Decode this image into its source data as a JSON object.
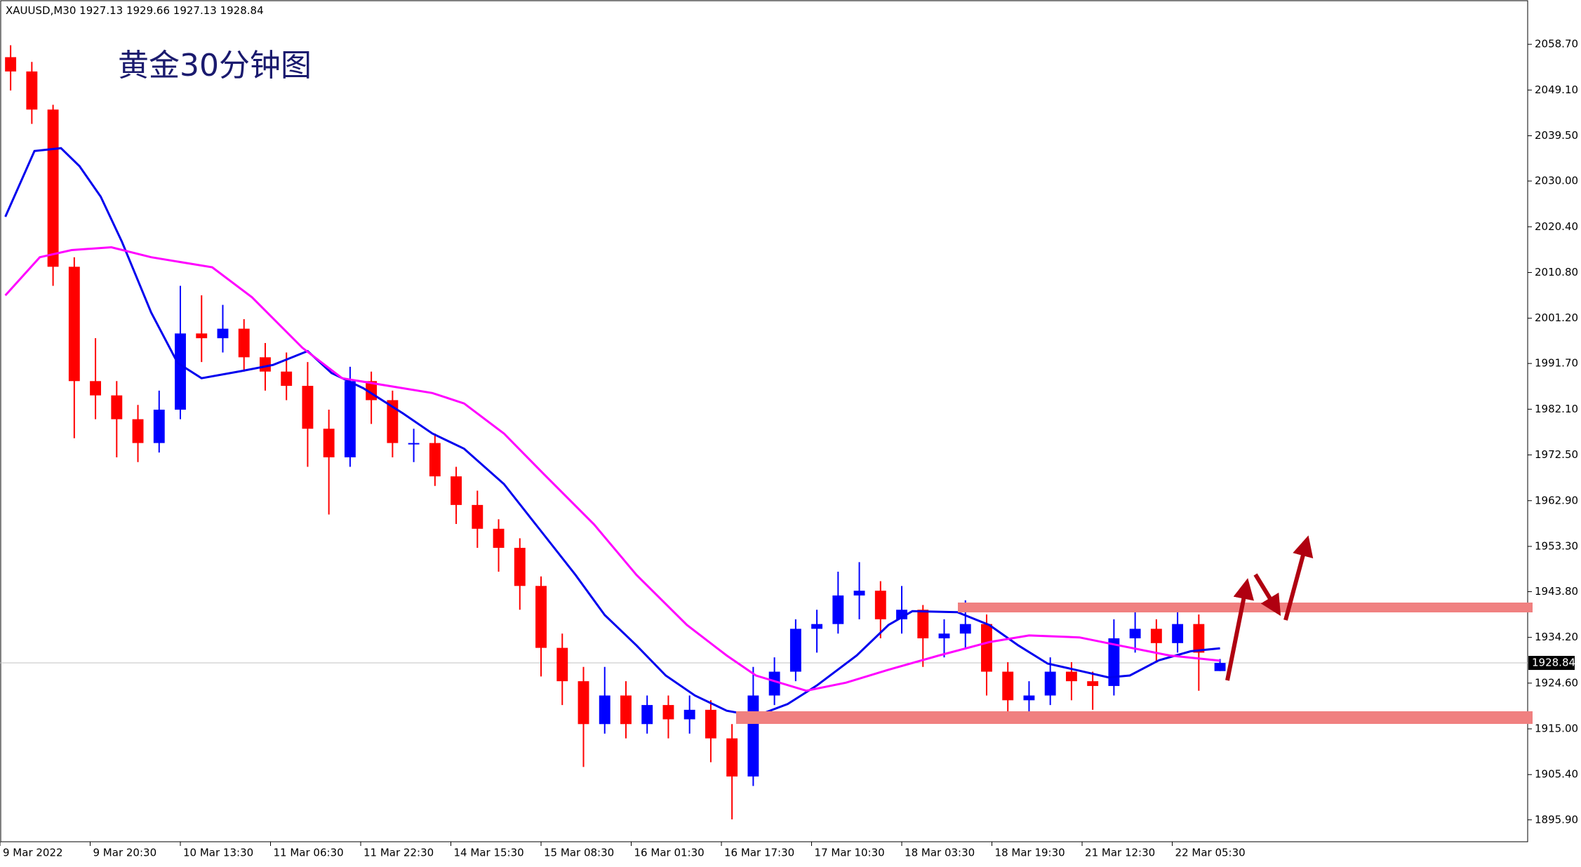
{
  "chart_data": {
    "type": "candlestick",
    "symbol": "XAUUSD,M30",
    "title": "黄金30分钟图",
    "up_color": "#0000ff",
    "down_color": "#ff0000",
    "last_price": 1928.84,
    "xlim": [
      0,
      576
    ],
    "ylim": [
      1891.3,
      2068.0
    ],
    "yticks": [
      {
        "value": 2058.7,
        "label": "2058.70"
      },
      {
        "value": 2049.1,
        "label": "2049.10"
      },
      {
        "value": 2039.5,
        "label": "2039.50"
      },
      {
        "value": 2030.0,
        "label": "2030.00"
      },
      {
        "value": 2020.4,
        "label": "2020.40"
      },
      {
        "value": 2010.8,
        "label": "2010.80"
      },
      {
        "value": 2001.2,
        "label": "2001.20"
      },
      {
        "value": 1991.7,
        "label": "1991.70"
      },
      {
        "value": 1982.1,
        "label": "1982.10"
      },
      {
        "value": 1972.5,
        "label": "1972.50"
      },
      {
        "value": 1962.9,
        "label": "1962.90"
      },
      {
        "value": 1953.3,
        "label": "1953.30"
      },
      {
        "value": 1943.8,
        "label": "1943.80"
      },
      {
        "value": 1934.2,
        "label": "1934.20"
      },
      {
        "value": 1924.6,
        "label": "1924.60"
      },
      {
        "value": 1915.0,
        "label": "1915.00"
      },
      {
        "value": 1905.4,
        "label": "1905.40"
      },
      {
        "value": 1895.9,
        "label": "1895.90"
      }
    ],
    "xticks": [
      {
        "value": 0,
        "label": "9 Mar 2022"
      },
      {
        "value": 34,
        "label": "9 Mar 20:30"
      },
      {
        "value": 68,
        "label": "10 Mar 13:30"
      },
      {
        "value": 102,
        "label": "11 Mar 06:30"
      },
      {
        "value": 136,
        "label": "11 Mar 22:30"
      },
      {
        "value": 170,
        "label": "14 Mar 15:30"
      },
      {
        "value": 204,
        "label": "15 Mar 08:30"
      },
      {
        "value": 238,
        "label": "16 Mar 01:30"
      },
      {
        "value": 272,
        "label": "16 Mar 17:30"
      },
      {
        "value": 306,
        "label": "17 Mar 10:30"
      },
      {
        "value": 340,
        "label": "18 Mar 03:30"
      },
      {
        "value": 374,
        "label": "18 Mar 19:30"
      },
      {
        "value": 408,
        "label": "21 Mar 12:30"
      },
      {
        "value": 442,
        "label": "22 Mar 05:30"
      }
    ],
    "x": [
      4,
      12,
      20,
      28,
      36,
      44,
      52,
      60,
      68,
      76,
      84,
      92,
      100,
      108,
      116,
      124,
      132,
      140,
      148,
      156,
      164,
      172,
      180,
      188,
      196,
      204,
      212,
      220,
      228,
      236,
      244,
      252,
      260,
      268,
      276,
      284,
      292,
      300,
      308,
      316,
      324,
      332,
      340,
      348,
      356,
      364,
      372,
      380,
      388,
      396,
      404,
      412,
      420,
      428,
      436,
      444,
      452,
      460
    ],
    "open": [
      2056,
      2053,
      2045,
      2012,
      1988,
      1985,
      1980,
      1975,
      1982,
      1998,
      1997,
      1999,
      1993,
      1990,
      1987,
      1978,
      1972,
      1988,
      1984,
      1975,
      1975,
      1968,
      1962,
      1957,
      1953,
      1945,
      1932,
      1925,
      1916,
      1922,
      1916,
      1920,
      1917,
      1919,
      1913,
      1905,
      1922,
      1927,
      1936,
      1937,
      1943,
      1944,
      1938,
      1940,
      1934,
      1935,
      1937,
      1927,
      1921,
      1922,
      1927,
      1925,
      1924,
      1934,
      1936,
      1933,
      1937,
      1927.13
    ],
    "high": [
      2058.5,
      2055,
      2046,
      2014,
      1997,
      1988,
      1983,
      1986,
      2008,
      2006,
      2004,
      2001,
      1996,
      1994,
      1992,
      1982,
      1991,
      1990,
      1986,
      1978,
      1977,
      1970,
      1965,
      1959,
      1955,
      1947,
      1935,
      1928,
      1928,
      1925,
      1922,
      1922,
      1922,
      1921,
      1916,
      1928,
      1930,
      1938,
      1940,
      1948,
      1950,
      1946,
      1945,
      1941,
      1938,
      1942,
      1939,
      1929,
      1925,
      1930,
      1929,
      1927,
      1938,
      1941,
      1938,
      1940,
      1939,
      1929.66
    ],
    "low": [
      2049,
      2042,
      2008,
      1976,
      1980,
      1972,
      1971,
      1973,
      1980,
      1992,
      1994,
      1990,
      1986,
      1984,
      1970,
      1960,
      1970,
      1979,
      1972,
      1971,
      1966,
      1958,
      1953,
      1948,
      1940,
      1926,
      1920,
      1907,
      1914,
      1913,
      1914,
      1913,
      1914,
      1908,
      1896,
      1903,
      1920,
      1925,
      1931,
      1935,
      1938,
      1934,
      1935,
      1928,
      1930,
      1932,
      1922,
      1918,
      1918,
      1920,
      1921,
      1919,
      1922,
      1931,
      1929,
      1931,
      1923,
      1927.13
    ],
    "close": [
      2053,
      2045,
      2012,
      1988,
      1985,
      1980,
      1975,
      1982,
      1998,
      1997,
      1999,
      1993,
      1990,
      1987,
      1978,
      1972,
      1988,
      1984,
      1975,
      1975,
      1968,
      1962,
      1957,
      1953,
      1945,
      1932,
      1925,
      1916,
      1922,
      1916,
      1920,
      1917,
      1919,
      1913,
      1905,
      1922,
      1927,
      1936,
      1937,
      1943,
      1944,
      1938,
      1940,
      1934,
      1935,
      1937,
      1927,
      1921,
      1922,
      1927,
      1925,
      1924,
      1934,
      1936,
      1933,
      1937,
      1931,
      1928.84
    ],
    "series": [
      {
        "color": "#0000ee",
        "x": [
          2,
          13,
          23,
          30,
          38,
          46,
          57,
          67,
          76,
          91,
          103,
          116,
          125,
          137,
          152,
          163,
          175,
          190,
          205,
          217,
          228,
          240,
          251,
          262,
          274,
          285,
          297,
          308,
          323,
          335,
          344,
          361,
          373,
          384,
          395,
          407,
          418,
          426,
          437,
          449,
          460
        ],
        "values": [
          2022.5,
          2036.3,
          2036.9,
          2033.1,
          2026.7,
          2017.2,
          2002.4,
          1991.8,
          1988.6,
          1990.1,
          1991.4,
          1994.3,
          1989.7,
          1986.5,
          1981.2,
          1977.0,
          1973.8,
          1966.4,
          1955.8,
          1947.3,
          1938.9,
          1932.5,
          1926.2,
          1922.0,
          1918.8,
          1917.7,
          1920.2,
          1924.1,
          1930.4,
          1936.8,
          1939.7,
          1939.5,
          1936.8,
          1932.5,
          1928.7,
          1927.2,
          1925.8,
          1926.2,
          1929.4,
          1931.3,
          1931.9
        ]
      },
      {
        "color": "#ff00ff",
        "x": [
          2,
          15,
          27,
          42,
          57,
          80,
          95,
          114,
          129,
          152,
          163,
          175,
          190,
          205,
          224,
          240,
          259,
          274,
          285,
          304,
          319,
          335,
          354,
          373,
          388,
          407,
          422,
          441,
          460
        ],
        "values": [
          2006.0,
          2014.0,
          2015.5,
          2016.1,
          2014.0,
          2011.9,
          2005.6,
          1995.0,
          1988.6,
          1986.5,
          1985.5,
          1983.3,
          1977.0,
          1968.5,
          1957.9,
          1947.3,
          1936.8,
          1930.4,
          1926.2,
          1923.0,
          1924.7,
          1927.4,
          1930.4,
          1933.2,
          1934.6,
          1934.2,
          1932.5,
          1930.4,
          1929.3
        ]
      }
    ]
  }
}
